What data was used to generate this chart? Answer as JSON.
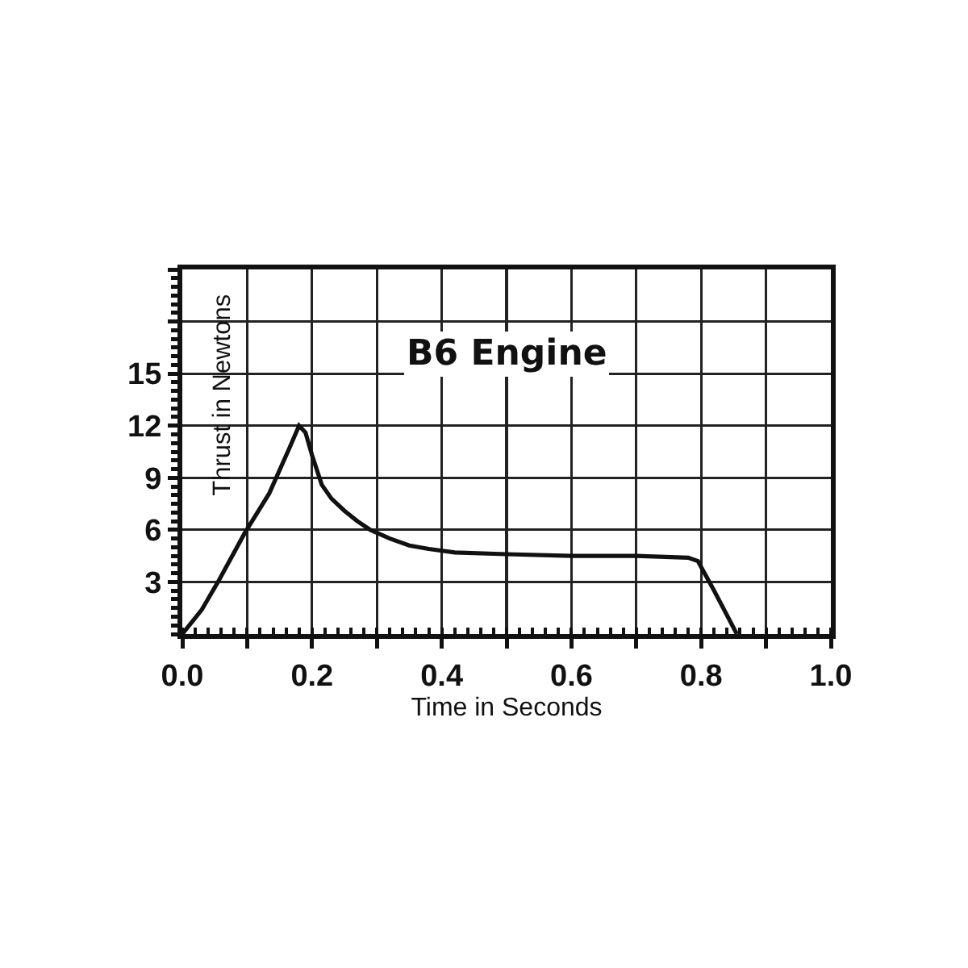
{
  "chart_data": {
    "type": "line",
    "title": "B6 Engine",
    "xlabel": "Time in Seconds",
    "ylabel": "Thrust in Newtons",
    "x": [
      0,
      0.03,
      0.055,
      0.096,
      0.134,
      0.165,
      0.18,
      0.19,
      0.2,
      0.215,
      0.23,
      0.25,
      0.27,
      0.29,
      0.32,
      0.35,
      0.38,
      0.42,
      0.5,
      0.6,
      0.7,
      0.78,
      0.795,
      0.82,
      0.855
    ],
    "series": [
      {
        "color": "#111111",
        "values": [
          0,
          1.4,
          3.0,
          5.8,
          8.1,
          10.7,
          12.0,
          11.6,
          10.3,
          8.6,
          7.8,
          7.1,
          6.5,
          6.0,
          5.5,
          5.1,
          4.9,
          4.7,
          4.6,
          4.5,
          4.5,
          4.4,
          4.2,
          2.5,
          0
        ]
      }
    ],
    "xlim": [
      0,
      1
    ],
    "ylim": [
      0,
      21
    ],
    "xticks": [
      {
        "value": 0,
        "label": "0.0"
      },
      {
        "value": 0.1,
        "label": null
      },
      {
        "value": 0.2,
        "label": "0.2"
      },
      {
        "value": 0.3,
        "label": null
      },
      {
        "value": 0.4,
        "label": "0.4"
      },
      {
        "value": 0.5,
        "label": null
      },
      {
        "value": 0.6,
        "label": "0.6"
      },
      {
        "value": 0.7,
        "label": null
      },
      {
        "value": 0.8,
        "label": "0.8"
      },
      {
        "value": 0.9,
        "label": null
      },
      {
        "value": 1,
        "label": "1.0"
      }
    ],
    "yticks": [
      3,
      6,
      9,
      12,
      15,
      {
        "value": 18,
        "label": null
      },
      {
        "value": 21,
        "label": null
      }
    ],
    "grid": true
  }
}
